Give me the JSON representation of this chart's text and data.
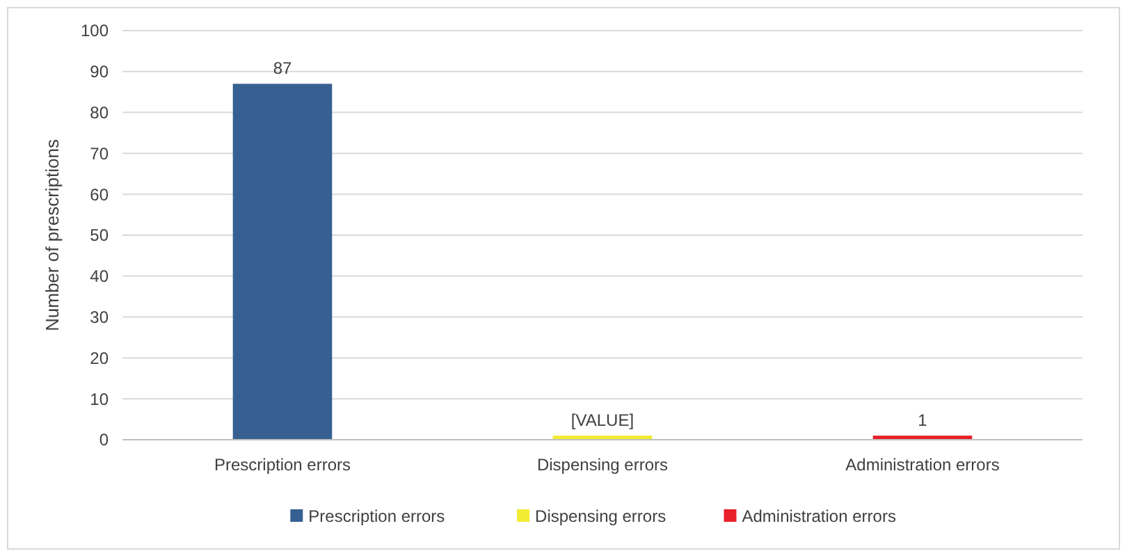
{
  "chart_data": {
    "type": "bar",
    "ylabel": "Number of prescriptions",
    "categories": [
      "Prescription errors",
      "Dispensing errors",
      "Administration errors"
    ],
    "stacked": true,
    "ylim": [
      0,
      100
    ],
    "yticks": [
      0,
      10,
      20,
      30,
      40,
      50,
      60,
      70,
      80,
      90,
      100
    ],
    "grid": "y",
    "legend": "bottom",
    "series": [
      {
        "name": "Prescription errors",
        "color": "#376092",
        "values": [
          87,
          null,
          null
        ],
        "value_labels": [
          "87",
          null,
          null
        ]
      },
      {
        "name": "Dispensing errors",
        "color": "#f2ec32",
        "values": [
          null,
          1,
          null
        ],
        "value_labels": [
          null,
          "[VALUE]",
          null
        ]
      },
      {
        "name": "Administration errors",
        "color": "#e8202a",
        "values": [
          null,
          null,
          1
        ],
        "value_labels": [
          null,
          null,
          "1"
        ]
      }
    ]
  }
}
